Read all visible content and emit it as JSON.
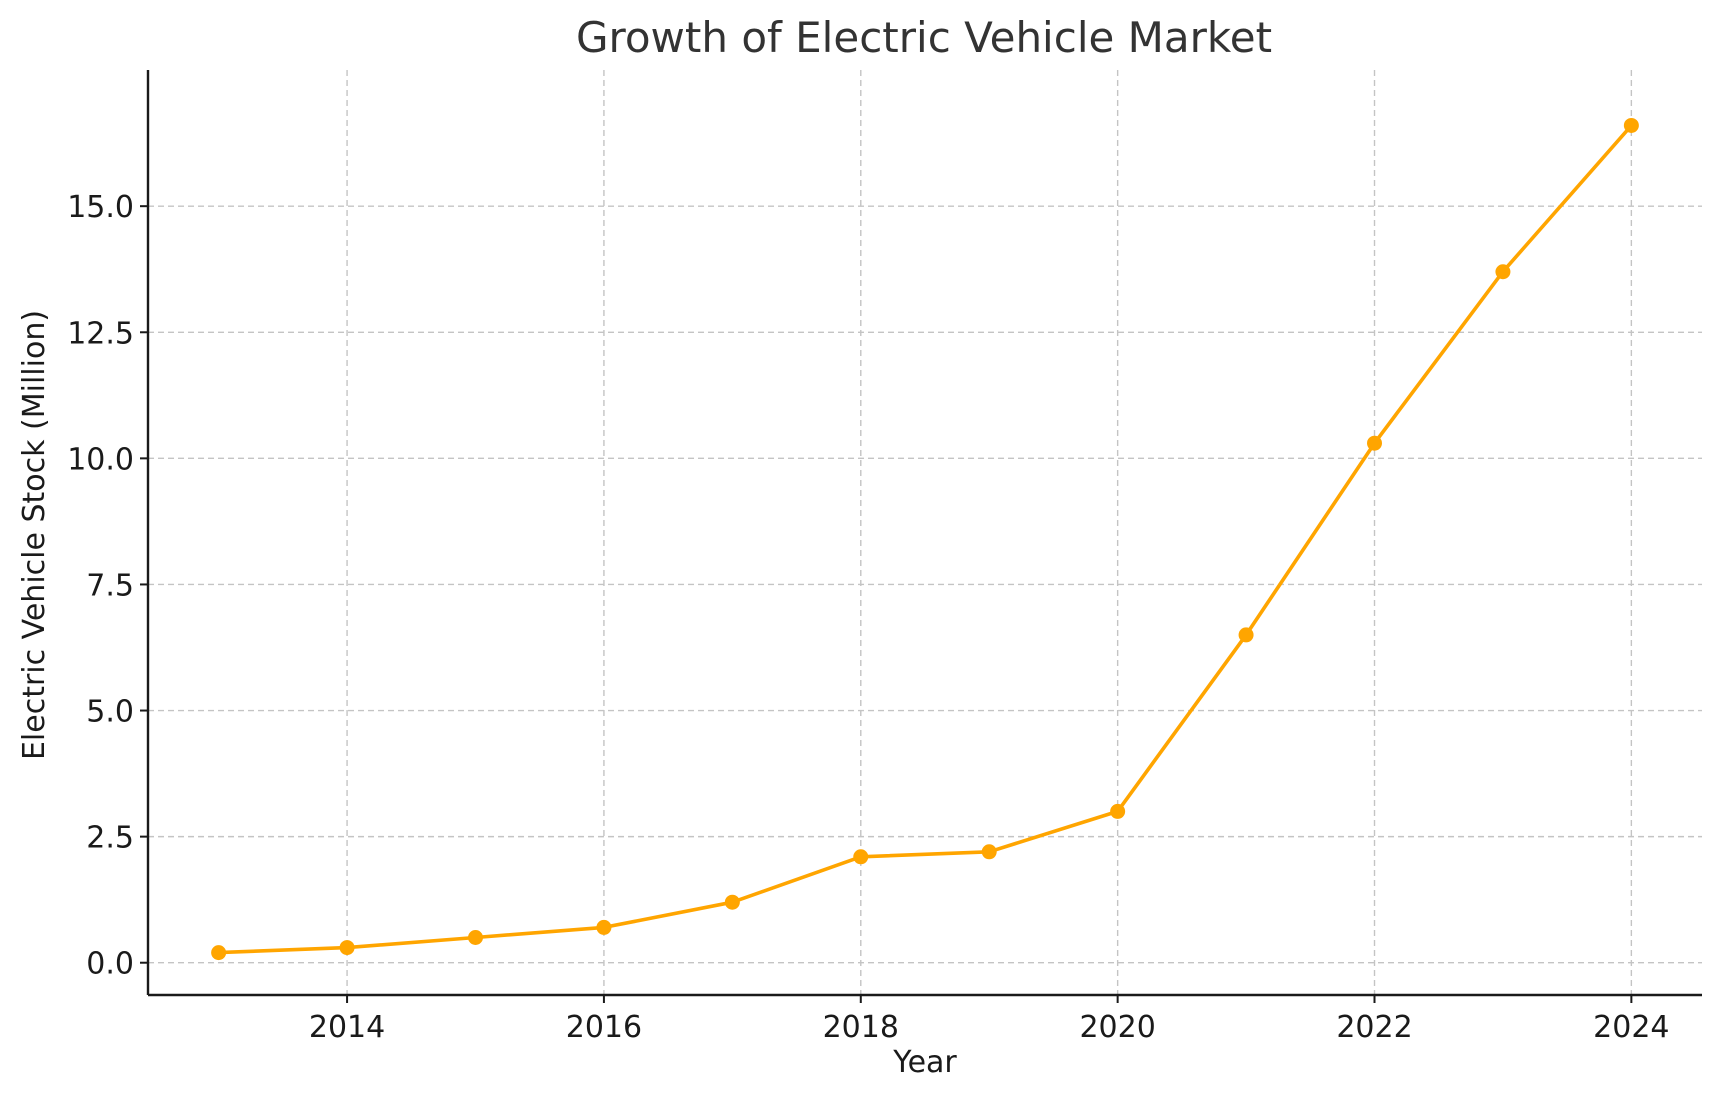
{
  "chart_data": {
    "type": "line",
    "title": "Growth of Electric Vehicle Market",
    "xlabel": "Year",
    "ylabel": "Electric Vehicle Stock (Million)",
    "xlim": [
      2012.45,
      2024.55
    ],
    "ylim": [
      -0.64,
      17.7
    ],
    "x_ticks": [
      2014,
      2016,
      2018,
      2020,
      2022,
      2024
    ],
    "x_tick_labels": [
      "2014",
      "2016",
      "2018",
      "2020",
      "2022",
      "2024"
    ],
    "y_ticks": [
      0,
      2.5,
      5,
      7.5,
      10,
      12.5,
      15
    ],
    "y_tick_labels": [
      "0.0",
      "2.5",
      "5.0",
      "7.5",
      "10.0",
      "12.5",
      "15.0"
    ],
    "grid": true,
    "legend": "none",
    "series": [
      {
        "color": "#FFA500",
        "marker": "circle",
        "x": [
          2013,
          2014,
          2015,
          2016,
          2017,
          2018,
          2019,
          2020,
          2021,
          2022,
          2023,
          2024
        ],
        "y": [
          0.2,
          0.3,
          0.5,
          0.7,
          1.2,
          2.1,
          2.2,
          3.0,
          6.5,
          10.3,
          13.7,
          16.6
        ]
      }
    ]
  }
}
